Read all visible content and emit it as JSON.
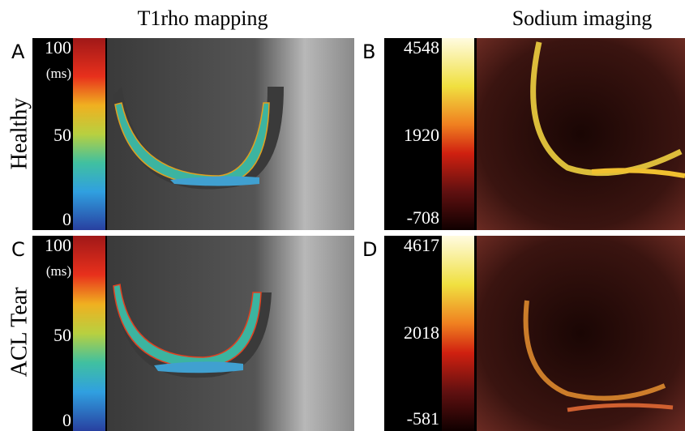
{
  "columns": [
    "T1rho mapping",
    "Sodium imaging"
  ],
  "rows": [
    "Healthy",
    "ACL Tear"
  ],
  "panels": [
    {
      "letter": "A",
      "scale": [
        "100",
        "(ms)",
        "50",
        "0"
      ]
    },
    {
      "letter": "B",
      "scale": [
        "4548",
        "1920",
        "-708"
      ]
    },
    {
      "letter": "C",
      "scale": [
        "100",
        "(ms)",
        "50",
        "0"
      ]
    },
    {
      "letter": "D",
      "scale": [
        "4617",
        "2018",
        "-581"
      ]
    }
  ]
}
